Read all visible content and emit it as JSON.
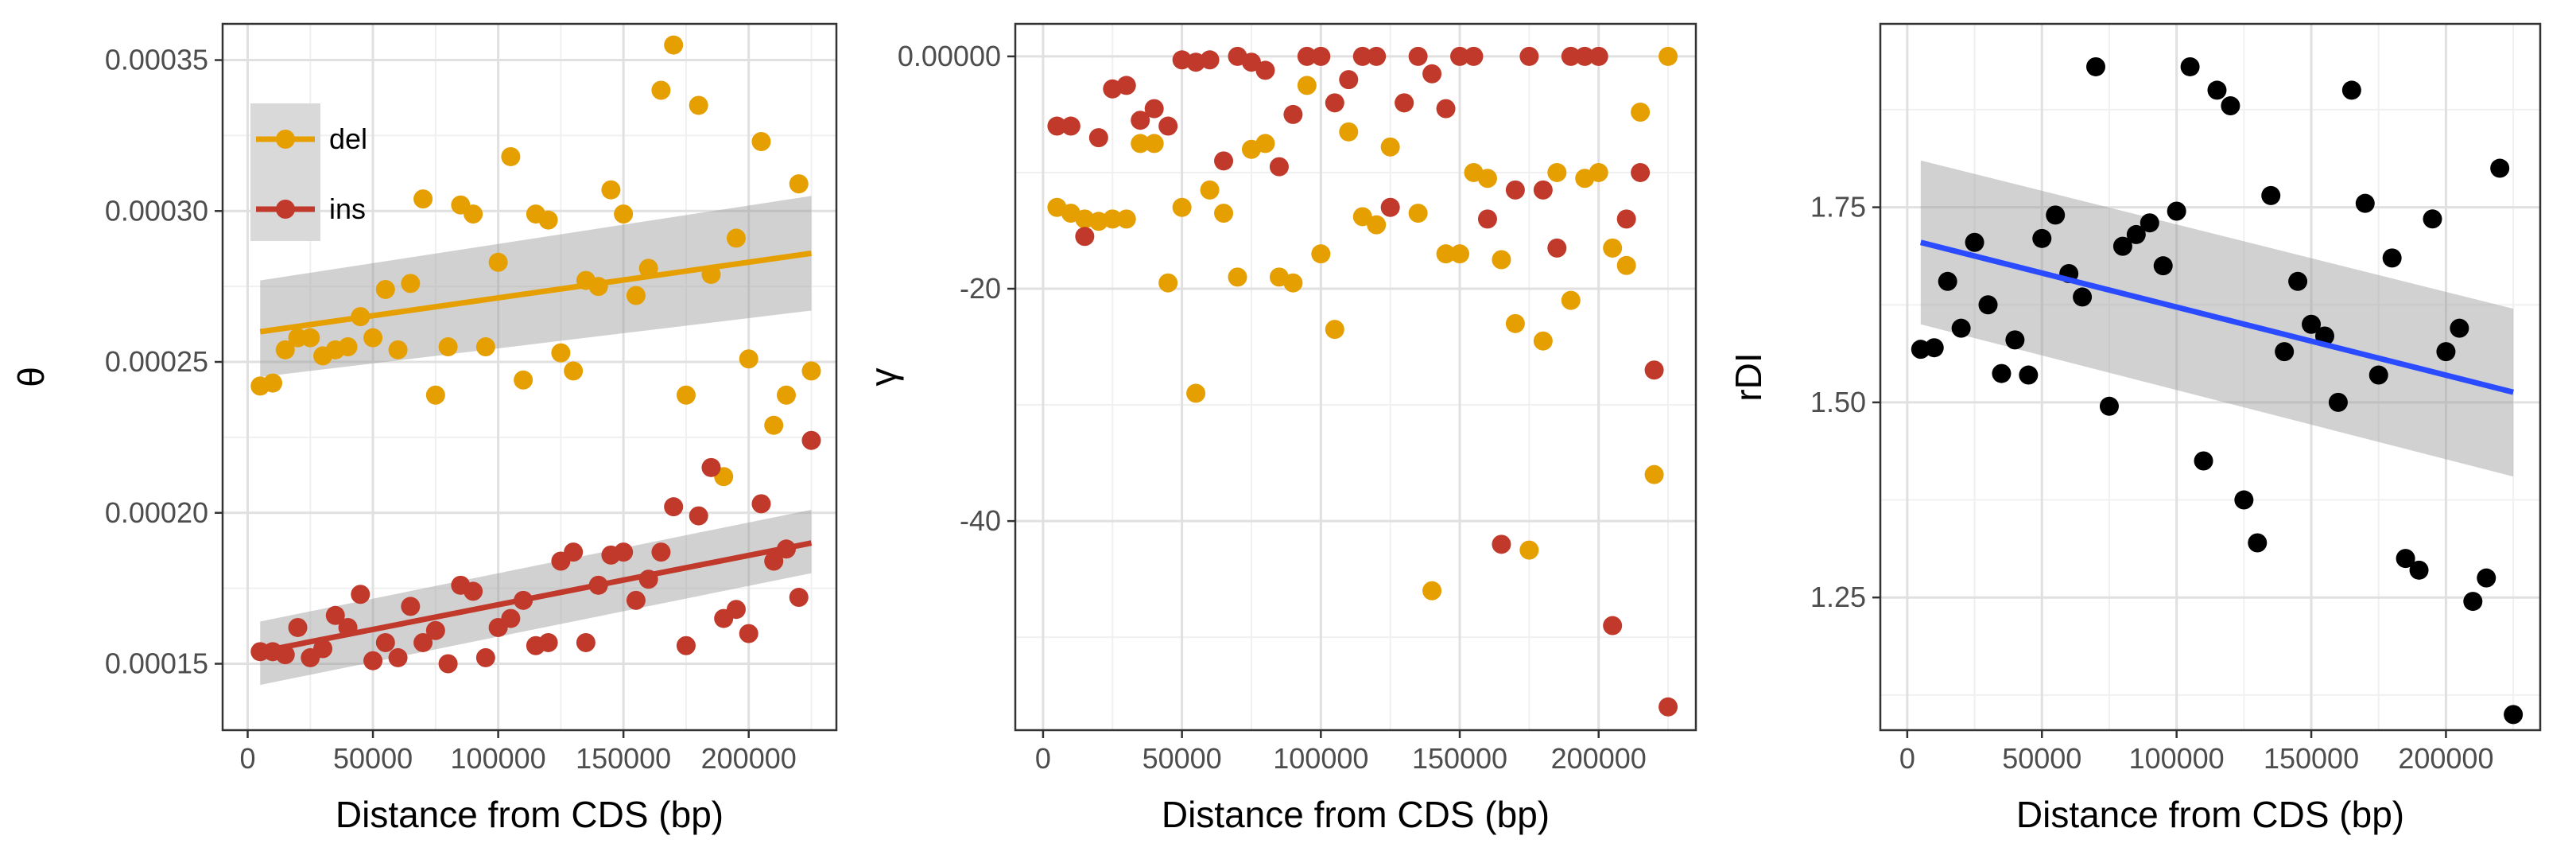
{
  "chart_data": [
    {
      "type": "scatter",
      "xlabel": "Distance from CDS (bp)",
      "ylabel": "θ",
      "xlim": [
        -10000,
        235000
      ],
      "ylim": [
        0.000128,
        0.000362
      ],
      "x_ticks": [
        0,
        50000,
        100000,
        150000,
        200000
      ],
      "y_ticks": [
        0.00015,
        0.0002,
        0.00025,
        0.0003,
        0.00035
      ],
      "legend": {
        "position": "top-left",
        "entries": [
          "del",
          "ins"
        ]
      },
      "colors": {
        "del": "#E69F00",
        "ins": "#C0392B",
        "band": "#999999"
      },
      "series": [
        {
          "name": "del",
          "color": "#E69F00",
          "x": [
            5000,
            10000,
            15000,
            20000,
            25000,
            30000,
            35000,
            40000,
            45000,
            50000,
            55000,
            60000,
            65000,
            70000,
            75000,
            80000,
            85000,
            90000,
            95000,
            100000,
            105000,
            110000,
            115000,
            120000,
            125000,
            130000,
            135000,
            140000,
            145000,
            150000,
            155000,
            160000,
            165000,
            170000,
            175000,
            180000,
            185000,
            190000,
            195000,
            200000,
            205000,
            210000,
            215000,
            220000,
            225000
          ],
          "y": [
            0.000242,
            0.000243,
            0.000254,
            0.000258,
            0.000258,
            0.000252,
            0.000254,
            0.000255,
            0.000265,
            0.000258,
            0.000274,
            0.000254,
            0.000276,
            0.000304,
            0.000239,
            0.000255,
            0.000302,
            0.000299,
            0.000255,
            0.000283,
            0.000318,
            0.000244,
            0.000299,
            0.000297,
            0.000253,
            0.000247,
            0.000277,
            0.000275,
            0.000307,
            0.000299,
            0.000272,
            0.000281,
            0.00034,
            0.000355,
            0.000239,
            0.000335,
            0.000279,
            0.000212,
            0.000291,
            0.000251,
            0.000323,
            0.000229,
            0.000239,
            0.000309,
            0.000247
          ],
          "fit": {
            "x": [
              5000,
              225000
            ],
            "y": [
              0.00026,
              0.000286
            ],
            "band_lower": [
              0.000245,
              0.000267
            ],
            "band_upper": [
              0.000277,
              0.000305
            ]
          }
        },
        {
          "name": "ins",
          "color": "#C0392B",
          "x": [
            5000,
            10000,
            15000,
            20000,
            25000,
            30000,
            35000,
            40000,
            45000,
            50000,
            55000,
            60000,
            65000,
            70000,
            75000,
            80000,
            85000,
            90000,
            95000,
            100000,
            105000,
            110000,
            115000,
            120000,
            125000,
            130000,
            135000,
            140000,
            145000,
            150000,
            155000,
            160000,
            165000,
            170000,
            175000,
            180000,
            185000,
            190000,
            195000,
            200000,
            205000,
            210000,
            215000,
            220000,
            225000
          ],
          "y": [
            0.000154,
            0.000154,
            0.000153,
            0.000162,
            0.000152,
            0.000155,
            0.000166,
            0.000162,
            0.000173,
            0.000151,
            0.000157,
            0.000152,
            0.000169,
            0.000157,
            0.000161,
            0.00015,
            0.000176,
            0.000174,
            0.000152,
            0.000162,
            0.000165,
            0.000171,
            0.000156,
            0.000157,
            0.000184,
            0.000187,
            0.000157,
            0.000176,
            0.000186,
            0.000187,
            0.000171,
            0.000178,
            0.000187,
            0.000202,
            0.000156,
            0.000199,
            0.000215,
            0.000165,
            0.000168,
            0.00016,
            0.000203,
            0.000184,
            0.000188,
            0.000172,
            0.000224
          ],
          "fit": {
            "x": [
              5000,
              225000
            ],
            "y": [
              0.000154,
              0.00019
            ],
            "band_lower": [
              0.000143,
              0.00018
            ],
            "band_upper": [
              0.000164,
              0.000201
            ]
          }
        }
      ]
    },
    {
      "type": "scatter",
      "xlabel": "Distance from CDS (bp)",
      "ylabel": "γ",
      "xlim": [
        -10000,
        235000
      ],
      "ylim": [
        -58,
        2.8
      ],
      "x_ticks": [
        0,
        50000,
        100000,
        150000,
        200000
      ],
      "y_ticks": [
        0,
        -20,
        -40
      ],
      "series": [
        {
          "name": "del",
          "color": "#E69F00",
          "x": [
            5000,
            10000,
            15000,
            20000,
            25000,
            30000,
            35000,
            40000,
            45000,
            50000,
            55000,
            60000,
            65000,
            70000,
            75000,
            80000,
            85000,
            90000,
            95000,
            100000,
            105000,
            110000,
            115000,
            120000,
            125000,
            130000,
            135000,
            140000,
            145000,
            150000,
            155000,
            160000,
            165000,
            170000,
            175000,
            180000,
            185000,
            190000,
            195000,
            200000,
            205000,
            210000,
            215000,
            220000,
            225000
          ],
          "y": [
            -13,
            -13.5,
            -14,
            -14.2,
            -14,
            -14,
            -7.5,
            -7.5,
            -19.5,
            -13,
            -29,
            -11.5,
            -13.5,
            -19,
            -8,
            -7.5,
            -19,
            -19.5,
            -2.5,
            -17,
            -23.5,
            -6.5,
            -13.8,
            -14.5,
            -7.8,
            -4,
            -13.5,
            -46,
            -17,
            -17,
            -10,
            -10.5,
            -17.5,
            -23,
            -42.5,
            -24.5,
            -10,
            -21,
            -10.5,
            -10,
            -16.5,
            -18,
            -4.8,
            -36,
            0
          ]
        },
        {
          "name": "ins",
          "color": "#C0392B",
          "x": [
            5000,
            10000,
            15000,
            20000,
            25000,
            30000,
            35000,
            40000,
            45000,
            50000,
            55000,
            60000,
            65000,
            70000,
            75000,
            80000,
            85000,
            90000,
            95000,
            100000,
            105000,
            110000,
            115000,
            120000,
            125000,
            130000,
            135000,
            140000,
            145000,
            150000,
            155000,
            160000,
            165000,
            170000,
            175000,
            180000,
            185000,
            190000,
            195000,
            200000,
            205000,
            210000,
            215000,
            220000,
            225000
          ],
          "y": [
            -6,
            -6,
            -15.5,
            -7,
            -2.8,
            -2.5,
            -5.5,
            -4.5,
            -6,
            -0.3,
            -0.5,
            -0.3,
            -9,
            0,
            -0.5,
            -1.2,
            -9.5,
            -5,
            0,
            0,
            -4,
            -2,
            0,
            0,
            -13,
            -4,
            0,
            -1.5,
            -4.5,
            0,
            0,
            -14,
            -42,
            -11.5,
            0,
            -11.5,
            -16.5,
            0,
            0,
            0,
            -49,
            -14,
            -10,
            -27,
            -56
          ]
        }
      ]
    },
    {
      "type": "scatter",
      "xlabel": "Distance from CDS (bp)",
      "ylabel": "rDI",
      "xlim": [
        -10000,
        235000
      ],
      "ylim": [
        1.08,
        1.985
      ],
      "x_ticks": [
        0,
        50000,
        100000,
        150000,
        200000
      ],
      "y_ticks": [
        1.25,
        1.5,
        1.75
      ],
      "colors": {
        "points": "#000000",
        "fit": "#2A4BFF",
        "band": "#999999"
      },
      "series": [
        {
          "name": "",
          "color": "#000000",
          "x": [
            5000,
            10000,
            15000,
            20000,
            25000,
            30000,
            35000,
            40000,
            45000,
            50000,
            55000,
            60000,
            65000,
            70000,
            75000,
            80000,
            85000,
            90000,
            95000,
            100000,
            105000,
            110000,
            115000,
            120000,
            125000,
            130000,
            135000,
            140000,
            145000,
            150000,
            155000,
            160000,
            165000,
            170000,
            175000,
            180000,
            185000,
            190000,
            195000,
            200000,
            205000,
            210000,
            215000,
            220000,
            225000
          ],
          "y": [
            1.568,
            1.57,
            1.655,
            1.595,
            1.705,
            1.625,
            1.537,
            1.58,
            1.535,
            1.71,
            1.74,
            1.665,
            1.635,
            1.93,
            1.495,
            1.7,
            1.715,
            1.73,
            1.675,
            1.745,
            1.93,
            1.425,
            1.9,
            1.88,
            1.375,
            1.32,
            1.765,
            1.565,
            1.655,
            1.6,
            1.585,
            1.5,
            1.9,
            1.755,
            1.535,
            1.685,
            1.3,
            1.285,
            1.735,
            1.565,
            1.595,
            1.245,
            1.275,
            1.8,
            1.1
          ],
          "fit": {
            "x": [
              5000,
              225000
            ],
            "y": [
              1.705,
              1.513
            ],
            "band_lower": [
              1.6,
              1.405
            ],
            "band_upper": [
              1.81,
              1.62
            ]
          }
        }
      ]
    }
  ]
}
